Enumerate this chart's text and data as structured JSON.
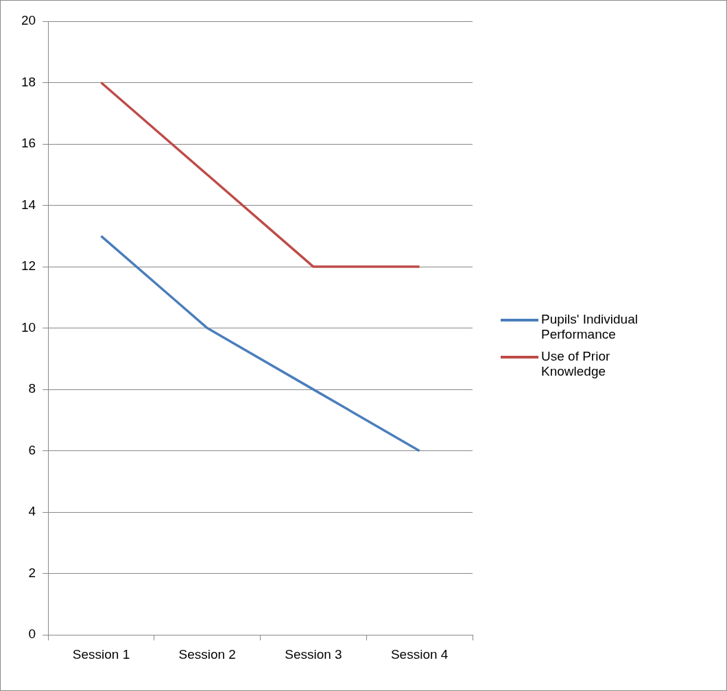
{
  "chart_data": {
    "type": "line",
    "categories": [
      "Session 1",
      "Session 2",
      "Session 3",
      "Session 4"
    ],
    "series": [
      {
        "name": "Pupils' Individual Performance",
        "color": "#4a7ebb",
        "values": [
          13,
          10,
          8,
          6
        ]
      },
      {
        "name": "Use of Prior Knowledge",
        "color": "#be4b48",
        "values": [
          18,
          15,
          12,
          12
        ]
      }
    ],
    "ylim": [
      0,
      20
    ],
    "yticks": [
      0,
      2,
      4,
      6,
      8,
      10,
      12,
      14,
      16,
      18,
      20
    ],
    "grid": "y",
    "legend": "right",
    "marker": "none",
    "line_style": "solid"
  }
}
